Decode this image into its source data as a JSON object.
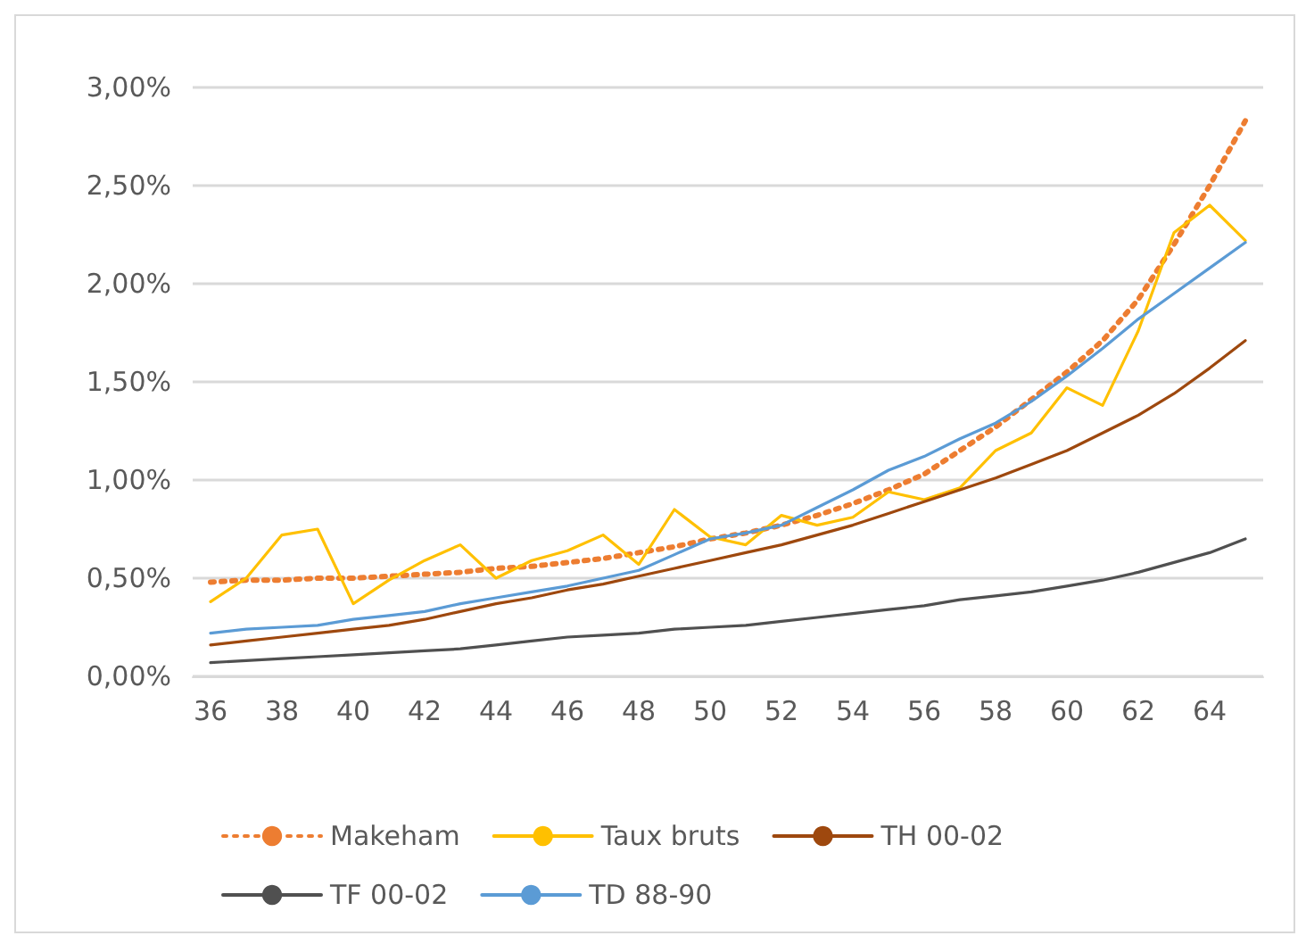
{
  "chart_data": {
    "type": "line",
    "categories": [
      "36",
      null,
      "38",
      null,
      "40",
      null,
      "42",
      null,
      "44",
      null,
      "46",
      null,
      "48",
      null,
      "50",
      null,
      "52",
      null,
      "54",
      null,
      "56",
      null,
      "58",
      null,
      "60",
      null,
      "62",
      null,
      "64",
      null
    ],
    "series": [
      {
        "name": "Makeham",
        "color": "#ed7d31",
        "line_style": "dotted",
        "values": [
          0.48,
          0.49,
          0.49,
          0.5,
          0.5,
          0.51,
          0.52,
          0.53,
          0.55,
          0.56,
          0.58,
          0.6,
          0.63,
          0.66,
          0.7,
          0.73,
          0.77,
          0.82,
          0.88,
          0.95,
          1.03,
          1.15,
          1.27,
          1.41,
          1.55,
          1.71,
          1.92,
          2.2,
          2.5,
          2.83
        ]
      },
      {
        "name": "Taux bruts",
        "color": "#ffc000",
        "line_style": "solid",
        "values": [
          0.38,
          0.5,
          0.72,
          0.75,
          0.37,
          0.49,
          0.59,
          0.67,
          0.5,
          0.59,
          0.64,
          0.72,
          0.57,
          0.85,
          0.71,
          0.67,
          0.82,
          0.77,
          0.81,
          0.94,
          0.9,
          0.96,
          1.15,
          1.24,
          1.47,
          1.38,
          1.76,
          2.26,
          2.4,
          2.22
        ]
      },
      {
        "name": "TH 00-02",
        "color": "#9e480e",
        "line_style": "solid",
        "values": [
          0.16,
          0.18,
          0.2,
          0.22,
          0.24,
          0.26,
          0.29,
          0.33,
          0.37,
          0.4,
          0.44,
          0.47,
          0.51,
          0.55,
          0.59,
          0.63,
          0.67,
          0.72,
          0.77,
          0.83,
          0.89,
          0.95,
          1.01,
          1.08,
          1.15,
          1.24,
          1.33,
          1.44,
          1.57,
          1.71
        ]
      },
      {
        "name": "TF 00-02",
        "color": "#505050",
        "line_style": "solid",
        "values": [
          0.07,
          0.08,
          0.09,
          0.1,
          0.11,
          0.12,
          0.13,
          0.14,
          0.16,
          0.18,
          0.2,
          0.21,
          0.22,
          0.24,
          0.25,
          0.26,
          0.28,
          0.3,
          0.32,
          0.34,
          0.36,
          0.39,
          0.41,
          0.43,
          0.46,
          0.49,
          0.53,
          0.58,
          0.63,
          0.7
        ]
      },
      {
        "name": "TD 88-90",
        "color": "#5b9bd5",
        "line_style": "solid",
        "values": [
          0.22,
          0.24,
          0.25,
          0.26,
          0.29,
          0.31,
          0.33,
          0.37,
          0.4,
          0.43,
          0.46,
          0.5,
          0.54,
          0.62,
          0.7,
          0.73,
          0.77,
          0.86,
          0.95,
          1.05,
          1.12,
          1.21,
          1.29,
          1.4,
          1.53,
          1.67,
          1.82,
          1.95,
          2.08,
          2.21
        ]
      }
    ],
    "ylim": [
      0,
      3
    ],
    "yticks": [
      {
        "value": 0,
        "label": "0,00%"
      },
      {
        "value": 0.5,
        "label": "0,50%"
      },
      {
        "value": 1,
        "label": "1,00%"
      },
      {
        "value": 1.5,
        "label": "1,50%"
      },
      {
        "value": 2,
        "label": "2,00%"
      },
      {
        "value": 2.5,
        "label": "2,50%"
      },
      {
        "value": 3,
        "label": "3,00%"
      }
    ],
    "grid": "y",
    "legend": "bottom",
    "marker": "none"
  }
}
